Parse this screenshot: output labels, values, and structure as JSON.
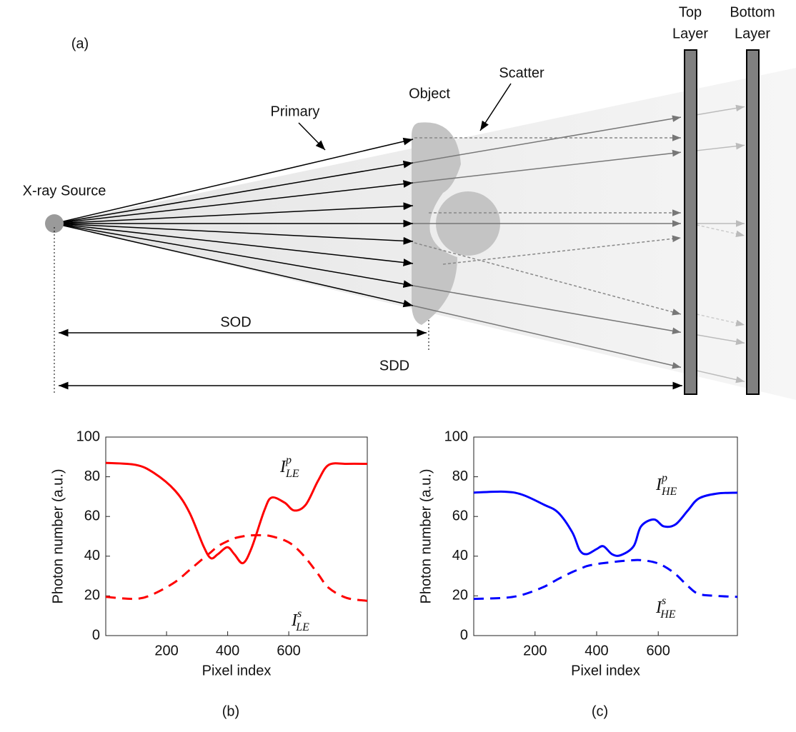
{
  "diagram": {
    "panel_label": "(a)",
    "source": "X-ray Source",
    "object": "Object",
    "primary": "Primary",
    "scatter": "Scatter",
    "sod": "SOD",
    "sdd": "SDD",
    "top_layer": [
      "Top",
      "Layer"
    ],
    "bottom_layer": [
      "Bottom",
      "Layer"
    ]
  },
  "chart_data": [
    {
      "type": "line",
      "panel_label": "(b)",
      "xlabel": "Pixel index",
      "ylabel": "Photon number (a.u.)",
      "xlim": [
        1,
        857
      ],
      "ylim": [
        0,
        100
      ],
      "xticks": [
        200,
        400,
        600
      ],
      "yticks": [
        0,
        20,
        40,
        60,
        80,
        100
      ],
      "x": [
        1,
        99,
        158,
        228,
        275,
        321,
        345,
        368,
        399,
        422,
        450,
        478,
        520,
        544,
        586,
        618,
        656,
        696,
        731,
        789,
        857
      ],
      "series": [
        {
          "name": "I",
          "superscript": "p",
          "subscript": "LE",
          "color": "#ff0000",
          "linestyle": "solid",
          "values": [
            87,
            86,
            82,
            73,
            62,
            45,
            39,
            41,
            44.5,
            41,
            36.5,
            44,
            63,
            69.5,
            67,
            63,
            66,
            78,
            86,
            86.5,
            86.5
          ]
        },
        {
          "name": "I",
          "superscript": "s",
          "subscript": "LE",
          "color": "#ff0000",
          "linestyle": "dashed",
          "values": [
            19.5,
            18.5,
            21,
            27,
            33,
            39,
            42,
            45,
            47.5,
            49,
            50,
            50.5,
            50.5,
            50,
            48,
            45,
            39,
            31,
            24,
            19,
            17.5
          ]
        }
      ]
    },
    {
      "type": "line",
      "panel_label": "(c)",
      "xlabel": "Pixel index",
      "ylabel": "Photon number (a.u.)",
      "xlim": [
        1,
        857
      ],
      "ylim": [
        0,
        100
      ],
      "xticks": [
        200,
        400,
        600
      ],
      "yticks": [
        0,
        20,
        40,
        60,
        80,
        100
      ],
      "x": [
        1,
        99,
        158,
        228,
        275,
        321,
        345,
        368,
        399,
        422,
        450,
        478,
        520,
        544,
        586,
        618,
        656,
        696,
        731,
        789,
        857
      ],
      "series": [
        {
          "name": "I",
          "superscript": "p",
          "subscript": "HE",
          "color": "#0000ff",
          "linestyle": "solid",
          "values": [
            72,
            72.5,
            71,
            66,
            62,
            52,
            43,
            41,
            43.5,
            45,
            41,
            40.5,
            45,
            55,
            58.5,
            55,
            56,
            63,
            69,
            71.5,
            72
          ]
        },
        {
          "name": "I",
          "superscript": "s",
          "subscript": "HE",
          "color": "#0000ff",
          "linestyle": "dashed",
          "values": [
            18.5,
            19,
            20.5,
            24.5,
            28.5,
            32,
            33.5,
            35,
            36,
            36.5,
            37,
            37.5,
            38,
            38,
            37,
            35,
            31,
            25,
            21,
            20,
            19.5
          ]
        }
      ]
    }
  ]
}
